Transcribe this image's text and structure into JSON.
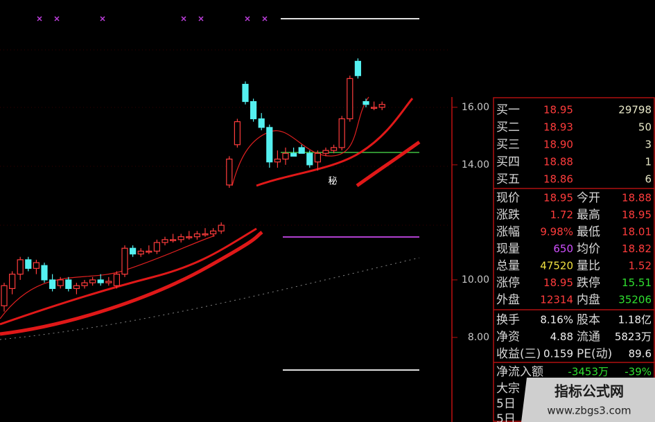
{
  "chart": {
    "type": "candlestick",
    "ylim": [
      5.06,
      19.73
    ],
    "yticks": [
      {
        "value": 16,
        "label": "16.00"
      },
      {
        "value": 14,
        "label": "14.00"
      },
      {
        "value": 10,
        "label": "10.00"
      },
      {
        "value": 8,
        "label": "8.00"
      }
    ],
    "candles": {
      "open": [
        9.1,
        9.7,
        10.2,
        10.7,
        10.4,
        10.5,
        10.0,
        9.8,
        10.0,
        9.7,
        9.8,
        9.9,
        10.0,
        9.9,
        9.8,
        10.2,
        11.1,
        10.9,
        11.0,
        11.0,
        11.3,
        11.4,
        11.4,
        11.5,
        11.5,
        11.6,
        11.6,
        11.7,
        13.3,
        14.7,
        16.8,
        16.2,
        15.6,
        15.3,
        14.1,
        14.2,
        14.4,
        14.6,
        14.4,
        14.1,
        14.4,
        14.5,
        14.6,
        15.6,
        17.6,
        16.2,
        16.0,
        16.0
      ],
      "high": [
        9.9,
        10.3,
        10.8,
        10.8,
        10.7,
        10.6,
        10.2,
        10.1,
        10.1,
        9.9,
        10.0,
        10.1,
        10.2,
        10.1,
        10.3,
        11.2,
        11.2,
        11.1,
        11.2,
        11.4,
        11.5,
        11.6,
        11.6,
        11.7,
        11.7,
        11.8,
        11.8,
        12.0,
        14.3,
        15.6,
        16.9,
        16.3,
        15.8,
        15.4,
        14.5,
        14.6,
        14.6,
        14.7,
        14.5,
        14.5,
        14.6,
        14.7,
        15.7,
        17.1,
        17.7,
        16.3,
        16.2,
        16.2
      ],
      "low": [
        8.9,
        9.5,
        10.0,
        10.3,
        10.2,
        9.9,
        9.6,
        9.7,
        9.6,
        9.5,
        9.7,
        9.8,
        9.8,
        9.8,
        9.7,
        10.1,
        10.8,
        10.8,
        10.9,
        10.9,
        11.2,
        11.3,
        11.3,
        11.4,
        11.4,
        11.5,
        11.5,
        11.6,
        13.2,
        14.6,
        16.1,
        15.5,
        15.2,
        13.9,
        13.9,
        14.0,
        14.3,
        14.4,
        13.9,
        13.8,
        14.3,
        14.4,
        14.5,
        15.5,
        17.0,
        16.0,
        15.9,
        15.9
      ],
      "close": [
        9.8,
        10.2,
        10.7,
        10.4,
        10.6,
        10.0,
        9.7,
        10.0,
        9.7,
        9.8,
        9.9,
        10.0,
        9.9,
        9.95,
        10.2,
        11.1,
        10.9,
        11.0,
        11.0,
        11.3,
        11.4,
        11.4,
        11.5,
        11.5,
        11.6,
        11.6,
        11.7,
        11.9,
        14.2,
        15.5,
        16.2,
        15.6,
        15.3,
        14.1,
        14.2,
        14.4,
        14.3,
        14.4,
        14.0,
        14.4,
        14.5,
        14.6,
        15.6,
        17.0,
        17.1,
        16.1,
        16.0,
        16.1
      ]
    },
    "up_color": "#ff3c3c",
    "down_color": "#54f0f0",
    "annotation": "秘"
  },
  "order_book": [
    {
      "label": "买一",
      "price": "18.95",
      "volume": "29798"
    },
    {
      "label": "买二",
      "price": "18.93",
      "volume": "50"
    },
    {
      "label": "买三",
      "price": "18.90",
      "volume": "3"
    },
    {
      "label": "买四",
      "price": "18.88",
      "volume": "1"
    },
    {
      "label": "买五",
      "price": "18.86",
      "volume": "6"
    }
  ],
  "quote": [
    {
      "label": "现价",
      "value": "18.95",
      "color": "#ff3c3c",
      "label2": "今开",
      "value2": "18.88",
      "color2": "#ff3c3c"
    },
    {
      "label": "涨跌",
      "value": "1.72",
      "color": "#ff3c3c",
      "label2": "最高",
      "value2": "18.95",
      "color2": "#ff3c3c"
    },
    {
      "label": "涨幅",
      "value": "9.98%",
      "color": "#ff3c3c",
      "label2": "最低",
      "value2": "18.01",
      "color2": "#ff3c3c"
    },
    {
      "label": "现量",
      "value": "650",
      "color": "#d050ff",
      "label2": "均价",
      "value2": "18.82",
      "color2": "#ff3c3c"
    },
    {
      "label": "总量",
      "value": "47520",
      "color": "#f0e040",
      "label2": "量比",
      "value2": "1.52",
      "color2": "#ff3c3c"
    },
    {
      "label": "涨停",
      "value": "18.95",
      "color": "#ff3c3c",
      "label2": "跌停",
      "value2": "15.51",
      "color2": "#30e030"
    },
    {
      "label": "外盘",
      "value": "12314",
      "color": "#ff3c3c",
      "label2": "内盘",
      "value2": "35206",
      "color2": "#30e030"
    }
  ],
  "info": [
    {
      "label": "换手",
      "value": "8.16%",
      "label2": "股本",
      "value2": "1.18亿"
    },
    {
      "label": "净资",
      "value": "4.88",
      "label2": "流通",
      "value2": "5823万"
    },
    {
      "label": "收益(三)",
      "value": "0.159",
      "label2": "PE(动)",
      "value2": "89.6"
    }
  ],
  "net_flow": {
    "label": "净流入额",
    "value": "-3453万",
    "percent": "-39%"
  },
  "footer": [
    "大宗",
    "5日",
    "5日"
  ],
  "watermark": {
    "title": "指标公式网",
    "url": "www.zbgs3.com"
  }
}
